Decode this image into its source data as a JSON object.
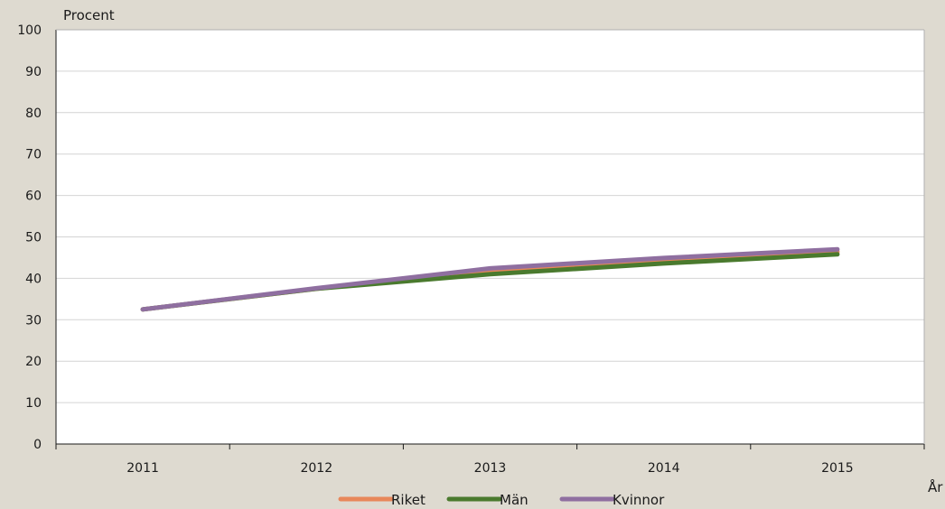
{
  "chart_data": {
    "type": "line",
    "title": "",
    "ylabel": "Procent",
    "xlabel": "År",
    "x": [
      "2011",
      "2012",
      "2013",
      "2014",
      "2015"
    ],
    "ylim": [
      0,
      100
    ],
    "yticks": [
      0,
      10,
      20,
      30,
      40,
      50,
      60,
      70,
      80,
      90,
      100
    ],
    "grid": true,
    "legend_position": "bottom",
    "series": [
      {
        "name": "Riket",
        "color": "#e8875a",
        "values": [
          32.5,
          37.5,
          41.8,
          44.3,
          46.4
        ]
      },
      {
        "name": "Män",
        "color": "#4a7a2e",
        "values": [
          32.5,
          37.5,
          41.0,
          43.6,
          45.8
        ]
      },
      {
        "name": "Kvinnor",
        "color": "#8f6fa0",
        "values": [
          32.5,
          37.6,
          42.4,
          44.9,
          47.0
        ]
      }
    ]
  }
}
